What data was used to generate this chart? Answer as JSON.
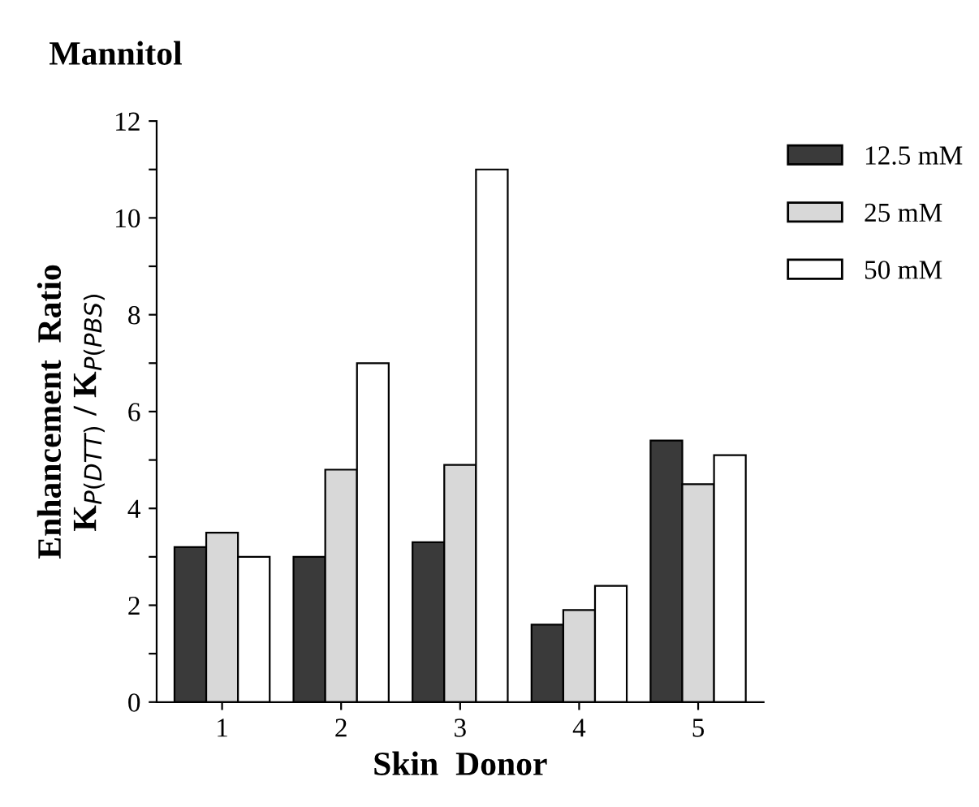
{
  "chart_data": {
    "type": "bar",
    "title": "Mannitol",
    "xlabel": "Skin  Donor",
    "ylabel": "Enhancement  Ratio\nK$_{P(DTT)}$ / K$_{P(PBS)}$",
    "categories": [
      "1",
      "2",
      "3",
      "4",
      "5"
    ],
    "series": [
      {
        "name": "12.5 mM",
        "color": "#3a3a3a",
        "values": [
          3.2,
          3.0,
          3.3,
          1.6,
          5.4
        ]
      },
      {
        "name": "25 mM",
        "color": "#d8d8d8",
        "values": [
          3.5,
          4.8,
          4.9,
          1.9,
          4.5
        ]
      },
      {
        "name": "50 mM",
        "color": "#ffffff",
        "values": [
          3.0,
          7.0,
          11.0,
          2.4,
          5.1
        ]
      }
    ],
    "ylim": [
      0,
      12
    ],
    "yticks": [
      0,
      {
        "value": 1,
        "label": null
      },
      2,
      {
        "value": 3,
        "label": null
      },
      4,
      {
        "value": 5,
        "label": null
      },
      6,
      {
        "value": 7,
        "label": null
      },
      8,
      {
        "value": 9,
        "label": null
      },
      10,
      {
        "value": 11,
        "label": null
      },
      12
    ],
    "legend": "top right",
    "grid": false
  }
}
